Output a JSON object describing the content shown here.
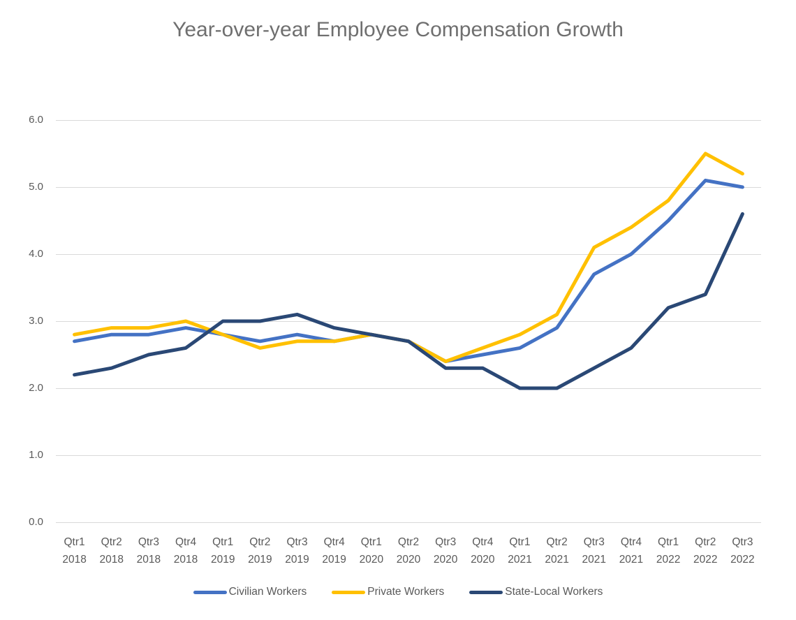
{
  "title": "Year-over-year Employee Compensation Growth",
  "chart_data": {
    "type": "line",
    "title": "Year-over-year Employee Compensation Growth",
    "categories": [
      {
        "qtr": "Qtr1",
        "year": "2018"
      },
      {
        "qtr": "Qtr2",
        "year": "2018"
      },
      {
        "qtr": "Qtr3",
        "year": "2018"
      },
      {
        "qtr": "Qtr4",
        "year": "2018"
      },
      {
        "qtr": "Qtr1",
        "year": "2019"
      },
      {
        "qtr": "Qtr2",
        "year": "2019"
      },
      {
        "qtr": "Qtr3",
        "year": "2019"
      },
      {
        "qtr": "Qtr4",
        "year": "2019"
      },
      {
        "qtr": "Qtr1",
        "year": "2020"
      },
      {
        "qtr": "Qtr2",
        "year": "2020"
      },
      {
        "qtr": "Qtr3",
        "year": "2020"
      },
      {
        "qtr": "Qtr4",
        "year": "2020"
      },
      {
        "qtr": "Qtr1",
        "year": "2021"
      },
      {
        "qtr": "Qtr2",
        "year": "2021"
      },
      {
        "qtr": "Qtr3",
        "year": "2021"
      },
      {
        "qtr": "Qtr4",
        "year": "2021"
      },
      {
        "qtr": "Qtr1",
        "year": "2022"
      },
      {
        "qtr": "Qtr2",
        "year": "2022"
      },
      {
        "qtr": "Qtr3",
        "year": "2022"
      }
    ],
    "series": [
      {
        "name": "Civilian Workers",
        "color": "#4472C4",
        "values": [
          2.7,
          2.8,
          2.8,
          2.9,
          2.8,
          2.7,
          2.8,
          2.7,
          2.8,
          2.7,
          2.4,
          2.5,
          2.6,
          2.9,
          3.7,
          4.0,
          4.5,
          5.1,
          5.0
        ]
      },
      {
        "name": "Private Workers",
        "color": "#FFC000",
        "values": [
          2.8,
          2.9,
          2.9,
          3.0,
          2.8,
          2.6,
          2.7,
          2.7,
          2.8,
          2.7,
          2.4,
          2.6,
          2.8,
          3.1,
          4.1,
          4.4,
          4.8,
          5.5,
          5.2
        ]
      },
      {
        "name": "State-Local Workers",
        "color": "#2A4875",
        "values": [
          2.2,
          2.3,
          2.5,
          2.6,
          3.0,
          3.0,
          3.1,
          2.9,
          2.8,
          2.7,
          2.3,
          2.3,
          2.0,
          2.0,
          2.3,
          2.6,
          3.2,
          3.4,
          4.6
        ]
      }
    ],
    "ylim": [
      0.0,
      6.0
    ],
    "ytick_labels": [
      "0.0",
      "1.0",
      "2.0",
      "3.0",
      "4.0",
      "5.0",
      "6.0"
    ],
    "ytick_step": 1.0,
    "grid": "horizontal-major",
    "legend_position": "bottom",
    "xlabel": "",
    "ylabel": ""
  },
  "colors": {
    "background": "#FFFFFF",
    "gridline": "#D9D9D9",
    "axis_text": "#595959",
    "title_text": "#6F6F6F"
  }
}
